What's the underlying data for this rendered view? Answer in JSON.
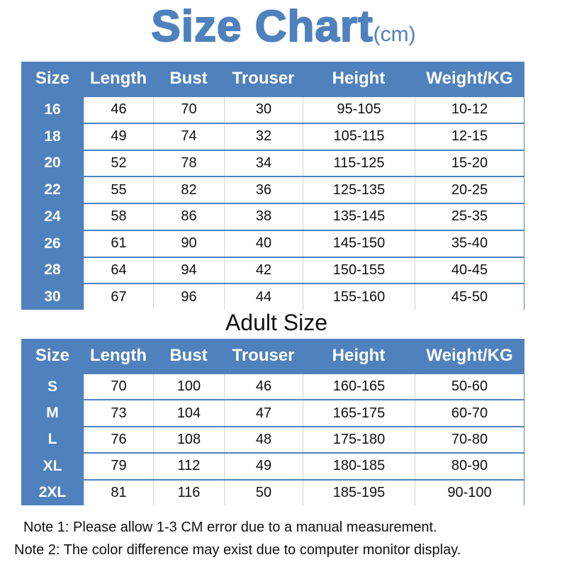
{
  "title": {
    "main": "Size Chart",
    "unit": "(cm)"
  },
  "colors": {
    "accent": "#4f81bd"
  },
  "columns": [
    "Size",
    "Length",
    "Bust",
    "Trouser",
    "Height",
    "Weight/KG"
  ],
  "kids_table": {
    "rows": [
      [
        "16",
        "46",
        "70",
        "30",
        "95-105",
        "10-12"
      ],
      [
        "18",
        "49",
        "74",
        "32",
        "105-115",
        "12-15"
      ],
      [
        "20",
        "52",
        "78",
        "34",
        "115-125",
        "15-20"
      ],
      [
        "22",
        "55",
        "82",
        "36",
        "125-135",
        "20-25"
      ],
      [
        "24",
        "58",
        "86",
        "38",
        "135-145",
        "25-35"
      ],
      [
        "26",
        "61",
        "90",
        "40",
        "145-150",
        "35-40"
      ],
      [
        "28",
        "64",
        "94",
        "42",
        "150-155",
        "40-45"
      ],
      [
        "30",
        "67",
        "96",
        "44",
        "155-160",
        "45-50"
      ]
    ]
  },
  "adult_heading": "Adult Size",
  "adult_table": {
    "rows": [
      [
        "S",
        "70",
        "100",
        "46",
        "160-165",
        "50-60"
      ],
      [
        "M",
        "73",
        "104",
        "47",
        "165-175",
        "60-70"
      ],
      [
        "L",
        "76",
        "108",
        "48",
        "175-180",
        "70-80"
      ],
      [
        "XL",
        "79",
        "112",
        "49",
        "180-185",
        "80-90"
      ],
      [
        "2XL",
        "81",
        "116",
        "50",
        "185-195",
        "90-100"
      ]
    ]
  },
  "notes": [
    "Note 1: Please allow 1-3 CM error due to a manual measurement.",
    "Note 2: The color difference may exist due to computer monitor display."
  ]
}
